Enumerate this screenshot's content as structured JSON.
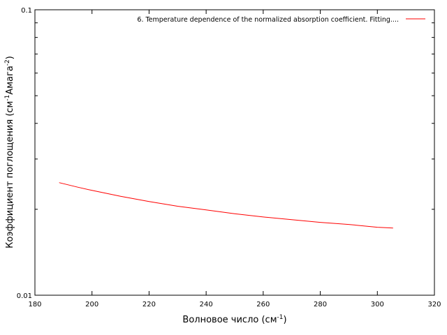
{
  "chart_data": {
    "type": "line",
    "title": "",
    "xlabel": "Волновое число (см",
    "xlabel_sup": "-1",
    "xlabel_tail": ")",
    "ylabel": "Коэффициент поглощения (см",
    "ylabel_sup1": "-1",
    "ylabel_mid": "Амага",
    "ylabel_sup2": "-2",
    "ylabel_tail": ")",
    "xlim": [
      180,
      320
    ],
    "ylim": [
      0.01,
      0.1
    ],
    "yscale": "log",
    "x_ticks": [
      180,
      200,
      220,
      240,
      260,
      280,
      300,
      320
    ],
    "x_tick_labels": [
      "180",
      "200",
      "220",
      "240",
      "260",
      "280",
      "300",
      "320"
    ],
    "y_major_ticks": [
      0.01,
      0.1
    ],
    "y_tick_labels": [
      "0.01",
      "0.1"
    ],
    "y_minor_ticks": [
      0.02,
      0.03,
      0.04,
      0.05,
      0.06,
      0.07,
      0.08,
      0.09
    ],
    "grid": false,
    "legend_position": "top-right",
    "series": [
      {
        "name": "6. Temperature dependence of the normalized absorption coefficient. Fitting....",
        "color": "#ff0000",
        "x": [
          188.5,
          195,
          200,
          210,
          220,
          230,
          240,
          250,
          260,
          270,
          280,
          290,
          300,
          305.5
        ],
        "y": [
          0.0248,
          0.0239,
          0.0233,
          0.0222,
          0.0213,
          0.0205,
          0.0199,
          0.0193,
          0.0188,
          0.0184,
          0.018,
          0.0177,
          0.0173,
          0.0172
        ]
      }
    ]
  }
}
